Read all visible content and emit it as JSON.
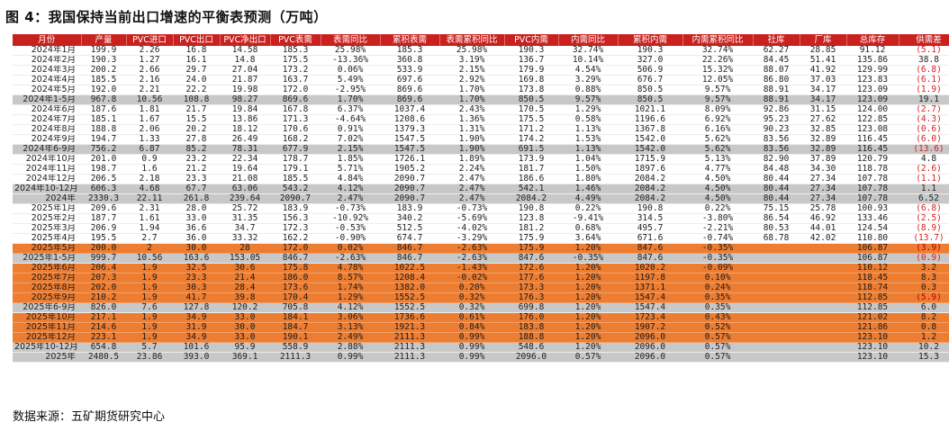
{
  "title": "图 4：我国保持当前出口增速的平衡表预测（万吨）",
  "source": "数据来源：五矿期货研究中心",
  "columns": [
    "月份",
    "产量",
    "PVC进口",
    "PVC出口",
    "PVC净出口",
    "PVC表需",
    "表需同比",
    "累积表需",
    "表需累积同比",
    "PVC内需",
    "内需同比",
    "累积内需",
    "内需累积同比",
    "社库",
    "厂库",
    "总库存",
    "供需差"
  ],
  "rows": [
    {
      "type": "normal",
      "cells": [
        "2024年1月",
        "199.9",
        "2.26",
        "16.8",
        "14.58",
        "185.3",
        "25.98%",
        "185.3",
        "25.98%",
        "190.3",
        "32.74%",
        "190.3",
        "32.74%",
        "62.27",
        "28.85",
        "91.12",
        "(5.1)"
      ]
    },
    {
      "type": "normal",
      "cells": [
        "2024年2月",
        "190.3",
        "1.27",
        "16.1",
        "14.8",
        "175.5",
        "-13.36%",
        "360.8",
        "3.19%",
        "136.7",
        "10.14%",
        "327.0",
        "22.26%",
        "84.45",
        "51.41",
        "135.86",
        "38.8"
      ]
    },
    {
      "type": "normal",
      "cells": [
        "2024年3月",
        "200.2",
        "2.66",
        "29.7",
        "27.04",
        "173.2",
        "0.06%",
        "533.9",
        "2.15%",
        "179.9",
        "4.54%",
        "506.9",
        "15.32%",
        "88.07",
        "41.92",
        "129.99",
        "(6.8)"
      ]
    },
    {
      "type": "normal",
      "cells": [
        "2024年4月",
        "185.5",
        "2.16",
        "24.0",
        "21.87",
        "163.7",
        "5.49%",
        "697.6",
        "2.92%",
        "169.8",
        "3.29%",
        "676.7",
        "12.05%",
        "86.80",
        "37.03",
        "123.83",
        "(6.1)"
      ]
    },
    {
      "type": "normal",
      "cells": [
        "2024年5月",
        "192.0",
        "2.21",
        "22.2",
        "19.98",
        "172.0",
        "-2.95%",
        "869.6",
        "1.70%",
        "173.8",
        "0.88%",
        "850.5",
        "9.57%",
        "88.91",
        "34.17",
        "123.09",
        "(1.9)"
      ]
    },
    {
      "type": "subtotal",
      "cells": [
        "2024年1-5月",
        "967.8",
        "10.56",
        "108.8",
        "98.27",
        "869.6",
        "1.70%",
        "869.6",
        "1.70%",
        "850.5",
        "9.57%",
        "850.5",
        "9.57%",
        "88.91",
        "34.17",
        "123.09",
        "19.1"
      ]
    },
    {
      "type": "normal",
      "cells": [
        "2024年6月",
        "187.6",
        "1.81",
        "21.7",
        "19.84",
        "167.8",
        "6.37%",
        "1037.4",
        "2.43%",
        "170.5",
        "1.29%",
        "1021.1",
        "8.09%",
        "92.86",
        "31.15",
        "124.00",
        "(2.7)"
      ]
    },
    {
      "type": "normal",
      "cells": [
        "2024年7月",
        "185.1",
        "1.67",
        "15.5",
        "13.86",
        "171.3",
        "-4.64%",
        "1208.6",
        "1.36%",
        "175.5",
        "0.58%",
        "1196.6",
        "6.92%",
        "95.23",
        "27.62",
        "122.85",
        "(4.3)"
      ]
    },
    {
      "type": "normal",
      "cells": [
        "2024年8月",
        "188.8",
        "2.06",
        "20.2",
        "18.12",
        "170.6",
        "0.91%",
        "1379.3",
        "1.31%",
        "171.2",
        "1.13%",
        "1367.8",
        "6.16%",
        "90.23",
        "32.85",
        "123.08",
        "(0.6)"
      ]
    },
    {
      "type": "normal",
      "cells": [
        "2024年9月",
        "194.7",
        "1.33",
        "27.8",
        "26.49",
        "168.2",
        "7.02%",
        "1547.5",
        "1.90%",
        "174.2",
        "1.53%",
        "1542.0",
        "5.62%",
        "83.56",
        "32.89",
        "116.45",
        "(6.0)"
      ]
    },
    {
      "type": "subtotal",
      "cells": [
        "2024年6-9月",
        "756.2",
        "6.87",
        "85.2",
        "78.31",
        "677.9",
        "2.15%",
        "1547.5",
        "1.90%",
        "691.5",
        "1.13%",
        "1542.0",
        "5.62%",
        "83.56",
        "32.89",
        "116.45",
        "(13.6)"
      ]
    },
    {
      "type": "normal",
      "cells": [
        "2024年10月",
        "201.0",
        "0.9",
        "23.2",
        "22.34",
        "178.7",
        "1.85%",
        "1726.1",
        "1.89%",
        "173.9",
        "1.04%",
        "1715.9",
        "5.13%",
        "82.90",
        "37.89",
        "120.79",
        "4.8"
      ]
    },
    {
      "type": "normal",
      "cells": [
        "2024年11月",
        "198.7",
        "1.6",
        "21.2",
        "19.64",
        "179.1",
        "5.71%",
        "1905.2",
        "2.24%",
        "181.7",
        "1.50%",
        "1897.6",
        "4.77%",
        "84.48",
        "34.30",
        "118.78",
        "(2.6)"
      ]
    },
    {
      "type": "normal",
      "cells": [
        "2024年12月",
        "206.5",
        "2.18",
        "23.3",
        "21.08",
        "185.5",
        "4.84%",
        "2090.7",
        "2.47%",
        "186.6",
        "1.80%",
        "2084.2",
        "4.50%",
        "80.44",
        "27.34",
        "107.78",
        "(1.1)"
      ]
    },
    {
      "type": "subtotal",
      "cells": [
        "2024年10-12月",
        "606.3",
        "4.68",
        "67.7",
        "63.06",
        "543.2",
        "4.12%",
        "2090.7",
        "2.47%",
        "542.1",
        "1.46%",
        "2084.2",
        "4.50%",
        "80.44",
        "27.34",
        "107.78",
        "1.1"
      ]
    },
    {
      "type": "subtotal",
      "cells": [
        "2024年",
        "2330.3",
        "22.11",
        "261.8",
        "239.64",
        "2090.7",
        "2.47%",
        "2090.7",
        "2.47%",
        "2084.2",
        "4.49%",
        "2084.2",
        "4.50%",
        "80.44",
        "27.34",
        "107.78",
        "6.52"
      ]
    },
    {
      "type": "normal",
      "cells": [
        "2025年1月",
        "209.6",
        "2.31",
        "28.0",
        "25.72",
        "183.9",
        "-0.73%",
        "183.9",
        "-0.73%",
        "190.8",
        "0.22%",
        "190.8",
        "0.22%",
        "75.15",
        "25.78",
        "100.93",
        "(6.8)"
      ]
    },
    {
      "type": "normal",
      "cells": [
        "2025年2月",
        "187.7",
        "1.61",
        "33.0",
        "31.35",
        "156.3",
        "-10.92%",
        "340.2",
        "-5.69%",
        "123.8",
        "-9.41%",
        "314.5",
        "-3.80%",
        "86.54",
        "46.92",
        "133.46",
        "(2.5)"
      ]
    },
    {
      "type": "normal",
      "cells": [
        "2025年3月",
        "206.9",
        "1.94",
        "36.6",
        "34.7",
        "172.3",
        "-0.53%",
        "512.5",
        "-4.02%",
        "181.2",
        "0.68%",
        "495.7",
        "-2.21%",
        "80.53",
        "44.01",
        "124.54",
        "(8.9)"
      ]
    },
    {
      "type": "normal",
      "cells": [
        "2025年4月",
        "195.5",
        "2.7",
        "36.0",
        "33.32",
        "162.2",
        "-0.90%",
        "674.7",
        "-3.29%",
        "175.9",
        "3.64%",
        "671.6",
        "-0.74%",
        "68.78",
        "42.02",
        "110.80",
        "(13.7)"
      ]
    },
    {
      "type": "forecast",
      "cells": [
        "2025年5月",
        "200.0",
        "2",
        "30.0",
        "28",
        "172.0",
        "0.02%",
        "846.7",
        "-2.63%",
        "175.9",
        "1.20%",
        "847.6",
        "-0.35%",
        "",
        "",
        "106.87",
        "(3.9)"
      ]
    },
    {
      "type": "subtotal",
      "cells": [
        "2025年1-5月",
        "999.7",
        "10.56",
        "163.6",
        "153.05",
        "846.7",
        "-2.63%",
        "846.7",
        "-2.63%",
        "847.6",
        "-0.35%",
        "847.6",
        "-0.35%",
        "",
        "",
        "106.87",
        "(0.9)"
      ]
    },
    {
      "type": "forecast",
      "cells": [
        "2025年6月",
        "206.4",
        "1.9",
        "32.5",
        "30.6",
        "175.8",
        "4.78%",
        "1022.5",
        "-1.43%",
        "172.6",
        "1.20%",
        "1020.2",
        "-0.09%",
        "",
        "",
        "110.12",
        "3.2"
      ]
    },
    {
      "type": "forecast",
      "cells": [
        "2025年7月",
        "207.3",
        "1.9",
        "23.3",
        "21.4",
        "186.0",
        "8.57%",
        "1208.4",
        "-0.02%",
        "177.6",
        "1.20%",
        "1197.8",
        "0.10%",
        "",
        "",
        "118.45",
        "8.3"
      ]
    },
    {
      "type": "forecast",
      "cells": [
        "2025年8月",
        "202.0",
        "1.9",
        "30.3",
        "28.4",
        "173.6",
        "1.74%",
        "1382.0",
        "0.20%",
        "173.3",
        "1.20%",
        "1371.1",
        "0.24%",
        "",
        "",
        "118.74",
        "0.3"
      ]
    },
    {
      "type": "forecast",
      "cells": [
        "2025年9月",
        "210.2",
        "1.9",
        "41.7",
        "39.8",
        "170.4",
        "1.29%",
        "1552.5",
        "0.32%",
        "176.3",
        "1.20%",
        "1547.4",
        "0.35%",
        "",
        "",
        "112.85",
        "(5.9)"
      ]
    },
    {
      "type": "subtotal",
      "cells": [
        "2025年6-9月",
        "826.0",
        "7.6",
        "127.8",
        "120.2",
        "705.8",
        "4.12%",
        "1552.5",
        "0.32%",
        "699.8",
        "1.20%",
        "1547.4",
        "0.35%",
        "",
        "",
        "112.85",
        "6.0"
      ]
    },
    {
      "type": "forecast",
      "cells": [
        "2025年10月",
        "217.1",
        "1.9",
        "34.9",
        "33.0",
        "184.1",
        "3.06%",
        "1736.6",
        "0.61%",
        "176.0",
        "1.20%",
        "1723.4",
        "0.43%",
        "",
        "",
        "121.02",
        "8.2"
      ]
    },
    {
      "type": "forecast",
      "cells": [
        "2025年11月",
        "214.6",
        "1.9",
        "31.9",
        "30.0",
        "184.7",
        "3.13%",
        "1921.3",
        "0.84%",
        "183.8",
        "1.20%",
        "1907.2",
        "0.52%",
        "",
        "",
        "121.86",
        "0.8"
      ]
    },
    {
      "type": "forecast",
      "cells": [
        "2025年12月",
        "223.1",
        "1.9",
        "34.9",
        "33.0",
        "190.1",
        "2.49%",
        "2111.3",
        "0.99%",
        "188.8",
        "1.20%",
        "2096.0",
        "0.57%",
        "",
        "",
        "123.10",
        "1.2"
      ]
    },
    {
      "type": "subtotal",
      "cells": [
        "2025年10-12月",
        "654.8",
        "5.7",
        "101.6",
        "95.9",
        "558.9",
        "2.88%",
        "2111.3",
        "0.99%",
        "548.6",
        "1.20%",
        "2096.0",
        "0.57%",
        "",
        "",
        "123.10",
        "10.2"
      ]
    },
    {
      "type": "subtotal",
      "cells": [
        "2025年",
        "2480.5",
        "23.86",
        "393.0",
        "369.1",
        "2111.3",
        "0.99%",
        "2111.3",
        "0.99%",
        "2096.0",
        "0.57%",
        "2096.0",
        "0.57%",
        "",
        "",
        "123.10",
        "15.3"
      ]
    }
  ]
}
